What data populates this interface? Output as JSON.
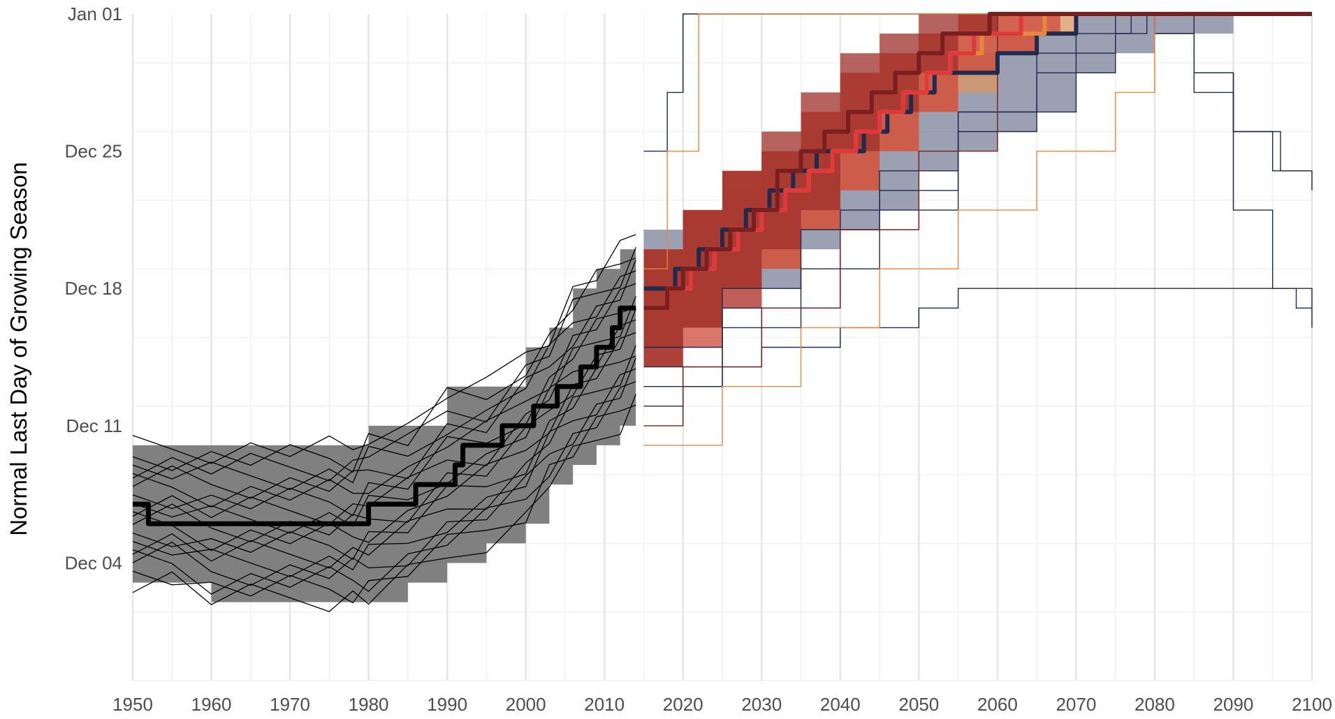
{
  "chart_data": {
    "type": "line",
    "title": "",
    "xlabel": "",
    "ylabel": "Normal Last Day of Growing Season",
    "x_range": [
      1950,
      2100
    ],
    "y_range": [
      "Nov 28",
      "Jan 01"
    ],
    "grid": true,
    "x_tick_labels": [
      "1950",
      "1960",
      "1970",
      "1980",
      "1990",
      "2000",
      "2010",
      "2020",
      "2030",
      "2040",
      "2050",
      "2060",
      "2070",
      "2080",
      "2090",
      "2100"
    ],
    "y_tick_labels": [
      "Jan 01",
      "Dec 25",
      "Dec 18",
      "Dec 11",
      "Dec 04"
    ],
    "colors": {
      "historical_band": "#808080",
      "historical_median": "#000000",
      "historical_models": "#000000",
      "rcp_blue": "#1f2a4d",
      "rcp_blue_band": "#7a8299",
      "rcp_orange": "#e6873c",
      "rcp_orange_band": "#d9965f",
      "rcp_red": "#e0383b",
      "rcp_red_band": "#cc4a3c",
      "rcp_darkred": "#7a1f1f",
      "rcp_darkred_band": "#9e2f2a"
    },
    "historical": {
      "band": {
        "x": [
          1950,
          1955,
          1960,
          1965,
          1970,
          1975,
          1978,
          1980,
          1985,
          1990,
          1995,
          2000,
          2003,
          2006,
          2009,
          2012,
          2014
        ],
        "lower": [
          "Dec 03",
          "Dec 03",
          "Dec 02",
          "Dec 02",
          "Dec 02",
          "Dec 02",
          "Dec 02",
          "Dec 02",
          "Dec 03",
          "Dec 04",
          "Dec 05",
          "Dec 06",
          "Dec 08",
          "Dec 09",
          "Dec 10",
          "Dec 11",
          "Dec 12"
        ],
        "upper": [
          "Dec 10",
          "Dec 10",
          "Dec 10",
          "Dec 10",
          "Dec 10",
          "Dec 10",
          "Dec 10",
          "Dec 11",
          "Dec 11",
          "Dec 13",
          "Dec 13",
          "Dec 15",
          "Dec 16",
          "Dec 18",
          "Dec 19",
          "Dec 20",
          "Dec 21"
        ]
      },
      "median": {
        "x": [
          1950,
          1952,
          1955,
          1960,
          1965,
          1970,
          1975,
          1979,
          1980,
          1985,
          1986,
          1990,
          1991,
          1992,
          1994,
          1997,
          1998,
          2001,
          2003,
          2004,
          2005,
          2007,
          2008,
          2009,
          2010,
          2011,
          2012,
          2014
        ],
        "y": [
          "Dec 07",
          "Dec 06",
          "Dec 06",
          "Dec 06",
          "Dec 06",
          "Dec 06",
          "Dec 06",
          "Dec 06",
          "Dec 07",
          "Dec 07",
          "Dec 08",
          "Dec 08",
          "Dec 09",
          "Dec 10",
          "Dec 10",
          "Dec 11",
          "Dec 11",
          "Dec 12",
          "Dec 12",
          "Dec 13",
          "Dec 13",
          "Dec 14",
          "Dec 14",
          "Dec 15",
          "Dec 15",
          "Dec 16",
          "Dec 17",
          "Dec 17"
        ]
      },
      "model_count": 18
    },
    "projections": [
      {
        "color_key": "rcp_blue",
        "band": {
          "x": [
            2015,
            2020,
            2025,
            2030,
            2035,
            2040,
            2045,
            2050,
            2055,
            2060,
            2065,
            2070,
            2075,
            2080,
            2085,
            2090,
            2095
          ],
          "lower": [
            "Dec 15",
            "Dec 16",
            "Dec 17",
            "Dec 18",
            "Dec 20",
            "Dec 21",
            "Dec 22",
            "Dec 24",
            "Dec 25",
            "Dec 26",
            "Dec 27",
            "Dec 29",
            "Dec 30",
            "Dec 31",
            "Dec 31",
            "Jan 01",
            "Jan 01"
          ],
          "upper": [
            "Dec 21",
            "Dec 22",
            "Dec 23",
            "Dec 25",
            "Dec 26",
            "Dec 27",
            "Dec 28",
            "Dec 29",
            "Dec 30",
            "Dec 31",
            "Dec 31",
            "Jan 01",
            "Jan 01",
            "Jan 01",
            "Jan 01",
            "Jan 01",
            "Jan 01"
          ]
        },
        "median": {
          "x": [
            2015,
            2017,
            2019,
            2022,
            2025,
            2028,
            2031,
            2034,
            2037,
            2040,
            2043,
            2046,
            2049,
            2052,
            2055,
            2060,
            2065,
            2070,
            2100
          ],
          "y": [
            "Dec 18",
            "Dec 18",
            "Dec 19",
            "Dec 20",
            "Dec 21",
            "Dec 22",
            "Dec 23",
            "Dec 24",
            "Dec 25",
            "Dec 25",
            "Dec 26",
            "Dec 27",
            "Dec 28",
            "Dec 29",
            "Dec 29",
            "Dec 30",
            "Dec 31",
            "Jan 01",
            "Jan 01"
          ]
        }
      },
      {
        "color_key": "rcp_orange",
        "band": {
          "x": [
            2015,
            2020,
            2025,
            2030,
            2035,
            2040,
            2045,
            2050,
            2055,
            2060,
            2065,
            2070,
            2075
          ],
          "lower": [
            "Dec 15",
            "Dec 16",
            "Dec 18",
            "Dec 19",
            "Dec 21",
            "Dec 23",
            "Dec 25",
            "Dec 27",
            "Dec 28",
            "Dec 30",
            "Dec 31",
            "Jan 01",
            "Jan 01"
          ],
          "upper": [
            "Dec 20",
            "Dec 22",
            "Dec 24",
            "Dec 25",
            "Dec 27",
            "Dec 29",
            "Dec 30",
            "Dec 31",
            "Jan 01",
            "Jan 01",
            "Jan 01",
            "Jan 01",
            "Jan 01"
          ]
        },
        "median": {
          "x": [
            2015,
            2018,
            2021,
            2024,
            2027,
            2030,
            2033,
            2036,
            2039,
            2042,
            2045,
            2048,
            2051,
            2054,
            2058,
            2062,
            2066,
            2100
          ],
          "y": [
            "Dec 17",
            "Dec 18",
            "Dec 19",
            "Dec 20",
            "Dec 21",
            "Dec 22",
            "Dec 23",
            "Dec 24",
            "Dec 25",
            "Dec 26",
            "Dec 27",
            "Dec 28",
            "Dec 29",
            "Dec 30",
            "Dec 31",
            "Dec 31",
            "Jan 01",
            "Jan 01"
          ]
        }
      },
      {
        "color_key": "rcp_red",
        "band": {
          "x": [
            2015,
            2020,
            2025,
            2030,
            2035,
            2040,
            2045,
            2050,
            2055,
            2060,
            2065,
            2068
          ],
          "lower": [
            "Dec 14",
            "Dec 15",
            "Dec 17",
            "Dec 19",
            "Dec 21",
            "Dec 23",
            "Dec 25",
            "Dec 27",
            "Dec 29",
            "Dec 30",
            "Dec 31",
            "Jan 01"
          ],
          "upper": [
            "Dec 20",
            "Dec 22",
            "Dec 24",
            "Dec 25",
            "Dec 27",
            "Dec 29",
            "Dec 30",
            "Dec 31",
            "Jan 01",
            "Jan 01",
            "Jan 01",
            "Jan 01"
          ]
        },
        "median": {
          "x": [
            2015,
            2018,
            2021,
            2024,
            2027,
            2030,
            2033,
            2036,
            2039,
            2042,
            2045,
            2048,
            2051,
            2054,
            2057,
            2060,
            2063,
            2100
          ],
          "y": [
            "Dec 17",
            "Dec 18",
            "Dec 19",
            "Dec 20",
            "Dec 21",
            "Dec 22",
            "Dec 23",
            "Dec 24",
            "Dec 25",
            "Dec 26",
            "Dec 27",
            "Dec 28",
            "Dec 29",
            "Dec 30",
            "Dec 31",
            "Dec 31",
            "Jan 01",
            "Jan 01"
          ]
        }
      },
      {
        "color_key": "rcp_darkred",
        "band": {
          "x": [
            2015,
            2020,
            2025,
            2030,
            2035,
            2040,
            2045,
            2050,
            2055,
            2060
          ],
          "lower": [
            "Dec 14",
            "Dec 16",
            "Dec 18",
            "Dec 20",
            "Dec 22",
            "Dec 25",
            "Dec 27",
            "Dec 29",
            "Dec 31",
            "Jan 01"
          ],
          "upper": [
            "Dec 20",
            "Dec 22",
            "Dec 24",
            "Dec 26",
            "Dec 28",
            "Dec 30",
            "Dec 31",
            "Jan 01",
            "Jan 01",
            "Jan 01"
          ]
        },
        "median": {
          "x": [
            2015,
            2018,
            2020,
            2023,
            2026,
            2029,
            2032,
            2035,
            2038,
            2041,
            2044,
            2047,
            2050,
            2053,
            2056,
            2059,
            2100
          ],
          "y": [
            "Dec 17",
            "Dec 18",
            "Dec 19",
            "Dec 20",
            "Dec 21",
            "Dec 22",
            "Dec 24",
            "Dec 25",
            "Dec 26",
            "Dec 27",
            "Dec 28",
            "Dec 29",
            "Dec 30",
            "Dec 31",
            "Dec 31",
            "Jan 01",
            "Jan 01"
          ]
        }
      }
    ],
    "projection_model_lines": [
      {
        "color_key": "rcp_blue",
        "x": [
          2015,
          2018,
          2020,
          2100
        ],
        "y": [
          "Dec 25",
          "Dec 28",
          "Jan 01",
          "Jan 01"
        ]
      },
      {
        "color_key": "rcp_blue",
        "x": [
          2015,
          2020,
          2025,
          2030,
          2040,
          2050,
          2055,
          2095,
          2098,
          2100
        ],
        "y": [
          "Dec 12",
          "Dec 13",
          "Dec 14",
          "Dec 15",
          "Dec 16",
          "Dec 17",
          "Dec 18",
          "Dec 18",
          "Dec 17",
          "Dec 17"
        ]
      },
      {
        "color_key": "rcp_blue",
        "x": [
          2015,
          2025,
          2035,
          2045,
          2055,
          2065,
          2075,
          2079,
          2085,
          2090,
          2096,
          2100
        ],
        "y": [
          "Dec 13",
          "Dec 16",
          "Dec 19",
          "Dec 23",
          "Dec 26",
          "Dec 29",
          "Dec 31",
          "Jan 01",
          "Dec 29",
          "Dec 26",
          "Dec 24",
          "Dec 24"
        ]
      },
      {
        "color_key": "rcp_blue",
        "x": [
          2015,
          2025,
          2040,
          2055,
          2070,
          2077,
          2080,
          2085,
          2090,
          2095,
          2100
        ],
        "y": [
          "Dec 14",
          "Dec 17",
          "Dec 22",
          "Dec 27",
          "Dec 31",
          "Jan 01",
          "Dec 31",
          "Dec 28",
          "Dec 22",
          "Dec 18",
          "Dec 16"
        ]
      },
      {
        "color_key": "rcp_blue",
        "x": [
          2015,
          2025,
          2035,
          2045,
          2055,
          2065,
          2075,
          2080,
          2085,
          2090,
          2095,
          2100
        ],
        "y": [
          "Dec 15",
          "Dec 18",
          "Dec 21",
          "Dec 24",
          "Dec 27",
          "Dec 30",
          "Jan 01",
          "Dec 31",
          "Dec 29",
          "Dec 26",
          "Dec 24",
          "Dec 23"
        ]
      },
      {
        "color_key": "rcp_orange",
        "x": [
          2015,
          2025,
          2035,
          2045,
          2055,
          2065,
          2075,
          2080,
          2100
        ],
        "y": [
          "Dec 10",
          "Dec 13",
          "Dec 16",
          "Dec 19",
          "Dec 22",
          "Dec 25",
          "Dec 28",
          "Jan 01",
          "Jan 01"
        ]
      },
      {
        "color_key": "rcp_orange",
        "x": [
          2015,
          2018,
          2022,
          2100
        ],
        "y": [
          "Dec 19",
          "Dec 25",
          "Jan 01",
          "Jan 01"
        ]
      },
      {
        "color_key": "rcp_darkred",
        "x": [
          2015,
          2020,
          2030,
          2040,
          2050,
          2060,
          2100
        ],
        "y": [
          "Dec 11",
          "Dec 14",
          "Dec 17",
          "Dec 21",
          "Dec 25",
          "Jan 01",
          "Jan 01"
        ]
      }
    ]
  }
}
